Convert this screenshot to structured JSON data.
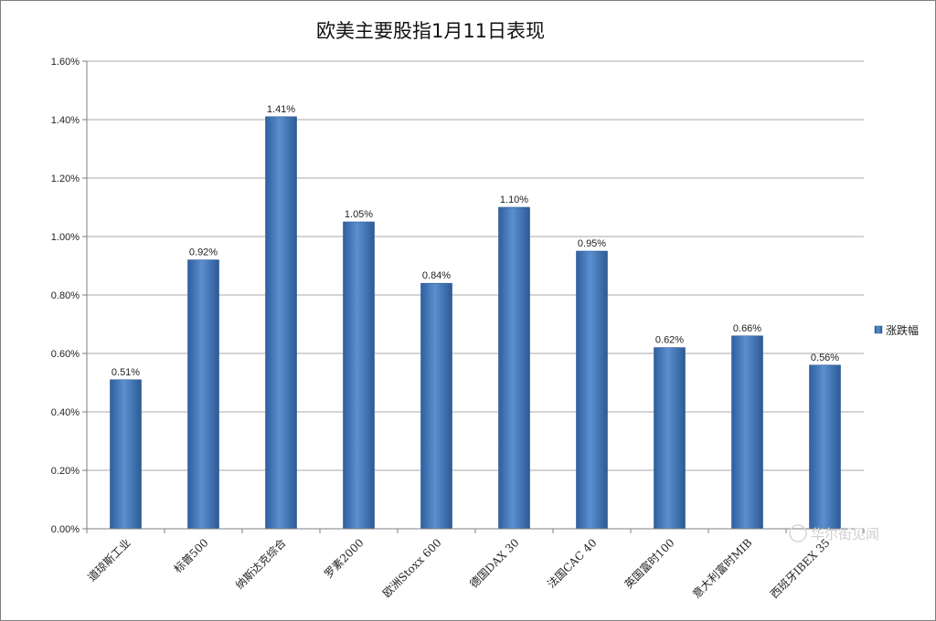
{
  "chart_data": {
    "type": "bar",
    "title": "欧美主要股指1月11日表现",
    "categories": [
      "道琼斯工业",
      "标普500",
      "纳斯达克综合",
      "罗素2000",
      "欧洲Stoxx 600",
      "德国DAX 30",
      "法国CAC 40",
      "英国富时100",
      "意大利富时MIB",
      "西班牙IBEX 35"
    ],
    "series": [
      {
        "name": "涨跌幅",
        "values": [
          0.51,
          0.92,
          1.41,
          1.05,
          0.84,
          1.1,
          0.95,
          0.62,
          0.66,
          0.56
        ],
        "labels": [
          "0.51%",
          "0.92%",
          "1.41%",
          "1.05%",
          "0.84%",
          "1.10%",
          "0.95%",
          "0.62%",
          "0.66%",
          "0.56%"
        ]
      }
    ],
    "ylim": [
      0,
      1.6
    ],
    "yticks": [
      0,
      0.2,
      0.4,
      0.6,
      0.8,
      1.0,
      1.2,
      1.4,
      1.6
    ],
    "ytick_labels": [
      "0.00%",
      "0.20%",
      "0.40%",
      "0.60%",
      "0.80%",
      "1.00%",
      "1.20%",
      "1.40%",
      "1.60%"
    ],
    "grid": true,
    "legend_position": "right",
    "bar_color": "#4a7ebb"
  },
  "watermark": {
    "text": "华尔街见闻"
  }
}
